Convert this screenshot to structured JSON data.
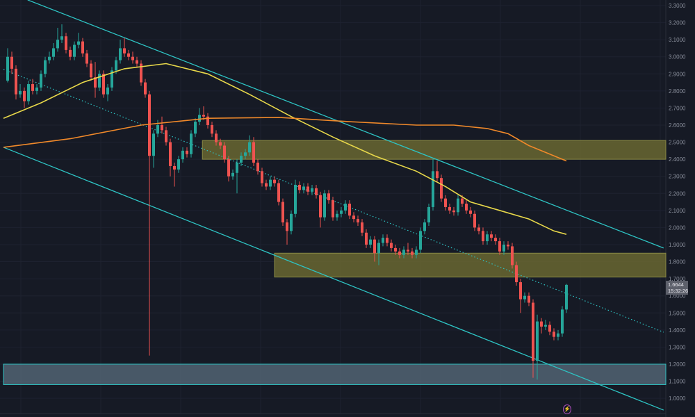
{
  "chart_data": {
    "type": "candlestick",
    "title": "",
    "xlabel": "",
    "ylabel": "",
    "ylim": [
      0.96,
      3.33
    ],
    "y_ticks": [
      "3.3000",
      "3.2000",
      "3.1000",
      "3.0000",
      "2.9000",
      "2.8000",
      "2.7000",
      "2.6000",
      "2.5000",
      "2.4000",
      "2.3000",
      "2.2000",
      "2.1000",
      "2.0000",
      "1.9000",
      "1.8000",
      "1.7000",
      "1.6000",
      "1.5000",
      "1.4000",
      "1.3000",
      "1.2000",
      "1.1000",
      "1.0000"
    ],
    "grid": true,
    "colors": {
      "up": "#26a69a",
      "down": "#ef5350",
      "ma_fast": "#e8d84a",
      "ma_slow": "#f0892a",
      "channel": "#2ec4c4",
      "zone": "#6b6a35",
      "support_zone": "#4a5a66",
      "background": "#161a25"
    },
    "candles_ohlc": [
      [
        2.86,
        3.05,
        2.85,
        3.0
      ],
      [
        3.0,
        3.03,
        2.9,
        2.93
      ],
      [
        2.93,
        2.95,
        2.75,
        2.78
      ],
      [
        2.78,
        2.84,
        2.76,
        2.8
      ],
      [
        2.8,
        2.82,
        2.7,
        2.74
      ],
      [
        2.74,
        2.86,
        2.72,
        2.84
      ],
      [
        2.84,
        2.87,
        2.78,
        2.8
      ],
      [
        2.8,
        2.84,
        2.78,
        2.82
      ],
      [
        2.82,
        2.92,
        2.8,
        2.9
      ],
      [
        2.9,
        3.0,
        2.88,
        2.98
      ],
      [
        2.98,
        3.03,
        2.96,
        3.0
      ],
      [
        3.0,
        3.08,
        2.98,
        3.05
      ],
      [
        3.05,
        3.17,
        3.03,
        3.1
      ],
      [
        3.1,
        3.19,
        3.08,
        3.12
      ],
      [
        3.12,
        3.14,
        3.02,
        3.04
      ],
      [
        3.04,
        3.06,
        2.98,
        3.0
      ],
      [
        3.0,
        3.09,
        2.98,
        3.07
      ],
      [
        3.07,
        3.14,
        3.05,
        3.09
      ],
      [
        3.09,
        3.11,
        3.0,
        3.02
      ],
      [
        3.02,
        3.04,
        2.94,
        2.96
      ],
      [
        2.96,
        2.98,
        2.86,
        2.88
      ],
      [
        2.88,
        2.97,
        2.76,
        2.82
      ],
      [
        2.82,
        2.92,
        2.8,
        2.9
      ],
      [
        2.9,
        2.92,
        2.76,
        2.78
      ],
      [
        2.78,
        2.84,
        2.74,
        2.82
      ],
      [
        2.82,
        2.94,
        2.8,
        2.92
      ],
      [
        2.92,
        3.0,
        2.9,
        2.98
      ],
      [
        2.98,
        3.1,
        2.96,
        3.05
      ],
      [
        3.05,
        3.11,
        3.0,
        3.02
      ],
      [
        3.02,
        3.04,
        2.98,
        3.0
      ],
      [
        3.0,
        3.03,
        2.96,
        2.98
      ],
      [
        2.98,
        3.0,
        2.94,
        2.96
      ],
      [
        2.96,
        2.98,
        2.83,
        2.85
      ],
      [
        2.85,
        2.87,
        2.76,
        2.78
      ],
      [
        2.78,
        2.8,
        1.25,
        2.42
      ],
      [
        2.42,
        2.57,
        2.35,
        2.55
      ],
      [
        2.55,
        2.63,
        2.53,
        2.6
      ],
      [
        2.6,
        2.65,
        2.55,
        2.57
      ],
      [
        2.57,
        2.59,
        2.48,
        2.5
      ],
      [
        2.5,
        2.52,
        2.3,
        2.36
      ],
      [
        2.36,
        2.38,
        2.24,
        2.34
      ],
      [
        2.34,
        2.42,
        2.32,
        2.4
      ],
      [
        2.4,
        2.47,
        2.38,
        2.45
      ],
      [
        2.45,
        2.47,
        2.41,
        2.43
      ],
      [
        2.43,
        2.57,
        2.41,
        2.55
      ],
      [
        2.55,
        2.64,
        2.53,
        2.62
      ],
      [
        2.62,
        2.7,
        2.6,
        2.66
      ],
      [
        2.66,
        2.71,
        2.63,
        2.65
      ],
      [
        2.65,
        2.67,
        2.58,
        2.6
      ],
      [
        2.6,
        2.62,
        2.53,
        2.55
      ],
      [
        2.55,
        2.57,
        2.48,
        2.5
      ],
      [
        2.5,
        2.52,
        2.46,
        2.48
      ],
      [
        2.48,
        2.5,
        2.38,
        2.4
      ],
      [
        2.4,
        2.42,
        2.27,
        2.3
      ],
      [
        2.3,
        2.34,
        2.28,
        2.32
      ],
      [
        2.32,
        2.4,
        2.2,
        2.38
      ],
      [
        2.38,
        2.44,
        2.36,
        2.42
      ],
      [
        2.42,
        2.46,
        2.4,
        2.44
      ],
      [
        2.44,
        2.54,
        2.42,
        2.5
      ],
      [
        2.5,
        2.53,
        2.36,
        2.38
      ],
      [
        2.38,
        2.4,
        2.31,
        2.33
      ],
      [
        2.33,
        2.35,
        2.24,
        2.26
      ],
      [
        2.26,
        2.28,
        2.22,
        2.24
      ],
      [
        2.24,
        2.3,
        2.22,
        2.28
      ],
      [
        2.28,
        2.3,
        2.24,
        2.26
      ],
      [
        2.26,
        2.28,
        2.13,
        2.15
      ],
      [
        2.15,
        2.17,
        2.01,
        2.03
      ],
      [
        2.03,
        2.05,
        1.9,
        1.98
      ],
      [
        1.98,
        2.1,
        1.96,
        2.08
      ],
      [
        2.08,
        2.28,
        2.06,
        2.25
      ],
      [
        2.25,
        2.27,
        2.2,
        2.22
      ],
      [
        2.22,
        2.26,
        2.2,
        2.24
      ],
      [
        2.24,
        2.26,
        2.19,
        2.21
      ],
      [
        2.21,
        2.25,
        2.19,
        2.23
      ],
      [
        2.23,
        2.25,
        2.17,
        2.19
      ],
      [
        2.19,
        2.21,
        2.0,
        2.06
      ],
      [
        2.06,
        2.22,
        2.04,
        2.2
      ],
      [
        2.2,
        2.22,
        2.14,
        2.16
      ],
      [
        2.16,
        2.18,
        2.04,
        2.06
      ],
      [
        2.06,
        2.1,
        2.04,
        2.08
      ],
      [
        2.08,
        2.12,
        2.06,
        2.1
      ],
      [
        2.1,
        2.16,
        2.08,
        2.14
      ],
      [
        2.14,
        2.16,
        2.05,
        2.07
      ],
      [
        2.07,
        2.09,
        2.03,
        2.05
      ],
      [
        2.05,
        2.07,
        2.01,
        2.03
      ],
      [
        2.03,
        2.05,
        1.95,
        1.97
      ],
      [
        1.97,
        1.99,
        1.88,
        1.9
      ],
      [
        1.9,
        1.95,
        1.88,
        1.93
      ],
      [
        1.93,
        1.95,
        1.8,
        1.85
      ],
      [
        1.85,
        1.93,
        1.78,
        1.91
      ],
      [
        1.91,
        1.96,
        1.89,
        1.94
      ],
      [
        1.94,
        1.96,
        1.89,
        1.91
      ],
      [
        1.91,
        1.93,
        1.86,
        1.88
      ],
      [
        1.88,
        1.9,
        1.84,
        1.86
      ],
      [
        1.86,
        1.88,
        1.82,
        1.84
      ],
      [
        1.84,
        1.89,
        1.82,
        1.87
      ],
      [
        1.87,
        1.91,
        1.84,
        1.86
      ],
      [
        1.86,
        1.88,
        1.82,
        1.84
      ],
      [
        1.84,
        1.89,
        1.82,
        1.87
      ],
      [
        1.87,
        2.0,
        1.85,
        1.98
      ],
      [
        1.98,
        2.05,
        1.96,
        2.03
      ],
      [
        2.03,
        2.14,
        2.01,
        2.12
      ],
      [
        2.12,
        2.4,
        2.1,
        2.33
      ],
      [
        2.33,
        2.39,
        2.27,
        2.29
      ],
      [
        2.29,
        2.31,
        2.15,
        2.17
      ],
      [
        2.17,
        2.19,
        2.1,
        2.12
      ],
      [
        2.12,
        2.14,
        2.08,
        2.1
      ],
      [
        2.1,
        2.12,
        2.07,
        2.09
      ],
      [
        2.09,
        2.19,
        2.07,
        2.17
      ],
      [
        2.17,
        2.19,
        2.12,
        2.14
      ],
      [
        2.14,
        2.16,
        2.08,
        2.1
      ],
      [
        2.1,
        2.12,
        2.06,
        2.08
      ],
      [
        2.08,
        2.1,
        1.98,
        2.0
      ],
      [
        2.0,
        2.02,
        1.96,
        1.98
      ],
      [
        1.98,
        2.0,
        1.9,
        1.92
      ],
      [
        1.92,
        1.98,
        1.9,
        1.96
      ],
      [
        1.96,
        1.98,
        1.92,
        1.94
      ],
      [
        1.94,
        1.96,
        1.9,
        1.92
      ],
      [
        1.92,
        1.94,
        1.84,
        1.86
      ],
      [
        1.86,
        1.92,
        1.84,
        1.9
      ],
      [
        1.9,
        1.92,
        1.87,
        1.89
      ],
      [
        1.89,
        1.91,
        1.76,
        1.78
      ],
      [
        1.78,
        1.8,
        1.66,
        1.68
      ],
      [
        1.68,
        1.7,
        1.5,
        1.58
      ],
      [
        1.58,
        1.62,
        1.56,
        1.6
      ],
      [
        1.6,
        1.62,
        1.54,
        1.56
      ],
      [
        1.56,
        1.58,
        1.12,
        1.22
      ],
      [
        1.22,
        1.49,
        1.11,
        1.45
      ],
      [
        1.45,
        1.47,
        1.38,
        1.42
      ],
      [
        1.42,
        1.46,
        1.4,
        1.43
      ],
      [
        1.43,
        1.45,
        1.37,
        1.39
      ],
      [
        1.39,
        1.41,
        1.34,
        1.36
      ],
      [
        1.36,
        1.4,
        1.34,
        1.38
      ],
      [
        1.38,
        1.54,
        1.36,
        1.52
      ],
      [
        1.52,
        1.67,
        1.5,
        1.6644
      ]
    ],
    "moving_averages": [
      {
        "color": "#e8d84a",
        "points": [
          [
            -1,
            2.64
          ],
          [
            8,
            2.73
          ],
          [
            18,
            2.85
          ],
          [
            28,
            2.93
          ],
          [
            38,
            2.96
          ],
          [
            48,
            2.9
          ],
          [
            58,
            2.78
          ],
          [
            68,
            2.65
          ],
          [
            78,
            2.53
          ],
          [
            88,
            2.42
          ],
          [
            98,
            2.33
          ],
          [
            105,
            2.24
          ],
          [
            111,
            2.15
          ],
          [
            118,
            2.1
          ],
          [
            125,
            2.05
          ],
          [
            131,
            1.98
          ],
          [
            134,
            1.96
          ]
        ]
      },
      {
        "color": "#f0892a",
        "points": [
          [
            -1,
            2.47
          ],
          [
            15,
            2.52
          ],
          [
            32,
            2.6
          ],
          [
            48,
            2.64
          ],
          [
            65,
            2.645
          ],
          [
            82,
            2.62
          ],
          [
            98,
            2.6
          ],
          [
            107,
            2.6
          ],
          [
            115,
            2.58
          ],
          [
            120,
            2.55
          ],
          [
            125,
            2.48
          ],
          [
            130,
            2.43
          ],
          [
            134,
            2.39
          ]
        ]
      }
    ],
    "trend_lines": [
      {
        "name": "channel-upper",
        "style": "solid",
        "start": [
          4.8,
          3.333
        ],
        "end": [
          157.3,
          1.88
        ]
      },
      {
        "name": "channel-lower",
        "style": "solid",
        "start": [
          -1,
          2.47
        ],
        "end": [
          157.3,
          0.931
        ]
      },
      {
        "name": "channel-mid",
        "style": "dotted",
        "start": [
          -1,
          2.926
        ],
        "end": [
          157.3,
          1.387
        ]
      }
    ],
    "zones": [
      {
        "name": "resistance-zone-upper",
        "from_index": 46.7,
        "price_low": 2.4,
        "price_high": 2.51,
        "kind": "resistance"
      },
      {
        "name": "resistance-zone-mid",
        "from_index": 64,
        "price_low": 1.71,
        "price_high": 1.85,
        "kind": "resistance"
      },
      {
        "name": "support-zone",
        "from_index": -1,
        "price_low": 1.08,
        "price_high": 1.2,
        "kind": "support"
      }
    ],
    "last_price": "1.6644",
    "countdown": "15:32:26"
  }
}
